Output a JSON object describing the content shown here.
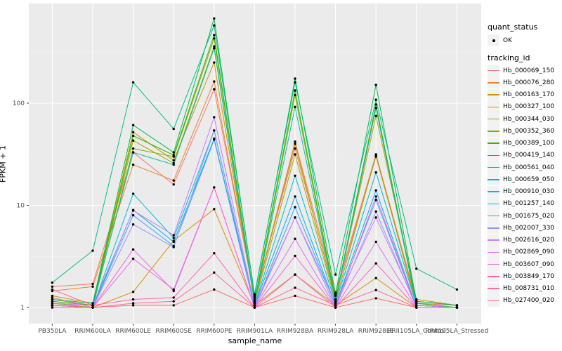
{
  "axes": {
    "y_title": "FPKM + 1",
    "x_title": "sample_name",
    "y_tick_labels": [
      "100",
      "10",
      "1"
    ],
    "y_tick_values": [
      100,
      10,
      1
    ]
  },
  "legend": {
    "quant_status": {
      "title": "quant_status",
      "items": [
        {
          "label": "OK",
          "marker": "point-icon"
        }
      ]
    },
    "tracking_id_title": "tracking_id"
  },
  "chart_data": {
    "type": "line",
    "title": "",
    "xlabel": "sample_name",
    "ylabel": "FPKM + 1",
    "y_scale": "log10",
    "ylim": [
      0.7,
      950
    ],
    "yticks": [
      1,
      10,
      100
    ],
    "grid": "on",
    "legend_position": "right",
    "panel_color": "#EBEBEB",
    "point_color": "#000000",
    "categories": [
      "PB350LA",
      "RRIM600LA",
      "RRIM600LE",
      "RRIM600SE",
      "RRIM600PE",
      "RRIM901LA",
      "RRIM928BA",
      "RRIM928LA",
      "RRIM928LE",
      "RRII105LA_Control",
      "RRII105LA_Stressed"
    ],
    "series": [
      {
        "name": "Hb_000069_150",
        "color": "#F8766D",
        "values": [
          1.6,
          1.7,
          33,
          16,
          137,
          1.25,
          36,
          1.3,
          30,
          1.1,
          1.05
        ]
      },
      {
        "name": "Hb_000076_280",
        "color": "#EA8331",
        "values": [
          1.45,
          1.6,
          25,
          17.5,
          163,
          1.2,
          42,
          1.4,
          31.5,
          1.15,
          1.05
        ]
      },
      {
        "name": "Hb_000163_170",
        "color": "#D89000",
        "values": [
          1.05,
          1.0,
          1.42,
          4.5,
          9.2,
          1.05,
          2.1,
          1.05,
          1.94,
          1.0,
          1.0
        ]
      },
      {
        "name": "Hb_000327_100",
        "color": "#C09B00",
        "values": [
          1.3,
          1.1,
          52,
          27.6,
          250,
          1.15,
          40,
          1.2,
          75,
          1.2,
          1.05
        ]
      },
      {
        "name": "Hb_000344_030",
        "color": "#A3A500",
        "values": [
          1.2,
          1.05,
          43,
          25.9,
          360,
          1.1,
          31.5,
          1.15,
          31,
          1.05,
          1.0
        ]
      },
      {
        "name": "Hb_000352_360",
        "color": "#7CAE00",
        "values": [
          1.1,
          1.0,
          36,
          30,
          430,
          1.1,
          120,
          1.15,
          90,
          1.05,
          1.0
        ]
      },
      {
        "name": "Hb_000389_100",
        "color": "#39B600",
        "values": [
          1.15,
          1.05,
          48,
          31,
          465,
          1.15,
          133,
          1.2,
          97,
          1.1,
          1.0
        ]
      },
      {
        "name": "Hb_000419_140",
        "color": "#00BB4E",
        "values": [
          1.2,
          1.1,
          61,
          33,
          675,
          1.3,
          174,
          1.35,
          151,
          1.15,
          1.05
        ]
      },
      {
        "name": "Hb_000561_040",
        "color": "#00C087",
        "values": [
          1.75,
          3.6,
          160,
          56,
          577,
          1.35,
          160,
          2.1,
          108,
          2.4,
          1.5
        ]
      },
      {
        "name": "Hb_000659_050",
        "color": "#00C0B2",
        "values": [
          1.1,
          1.05,
          33,
          25,
          345,
          1.1,
          92,
          1.15,
          90,
          1.05,
          1.0
        ]
      },
      {
        "name": "Hb_000910_030",
        "color": "#00BCD8",
        "values": [
          1.05,
          1.0,
          13,
          4.8,
          54,
          1.05,
          19.5,
          1.1,
          21,
          1.05,
          1.0
        ]
      },
      {
        "name": "Hb_001257_140",
        "color": "#00B0F6",
        "values": [
          1.05,
          1.0,
          9.0,
          4.4,
          45,
          1.05,
          12.2,
          1.05,
          14,
          1.0,
          1.0
        ]
      },
      {
        "name": "Hb_001675_020",
        "color": "#35A2FF",
        "values": [
          1.0,
          1.0,
          8.0,
          4.0,
          44,
          1.0,
          9.6,
          1.05,
          11.3,
          1.0,
          1.0
        ]
      },
      {
        "name": "Hb_002007_330",
        "color": "#9590FF",
        "values": [
          1.05,
          1.0,
          6.5,
          3.9,
          54,
          1.0,
          7.6,
          1.0,
          8.7,
          1.0,
          1.0
        ]
      },
      {
        "name": "Hb_002616_020",
        "color": "#C77CFF",
        "values": [
          1.1,
          1.05,
          8.9,
          5.1,
          73,
          1.05,
          7.6,
          1.1,
          7.6,
          1.05,
          1.0
        ]
      },
      {
        "name": "Hb_002869_090",
        "color": "#E76BF3",
        "values": [
          1.05,
          1.0,
          3.0,
          1.5,
          15,
          1.0,
          4.7,
          1.0,
          4.4,
          1.0,
          1.0
        ]
      },
      {
        "name": "Hb_003607_090",
        "color": "#FA62DB",
        "values": [
          1.0,
          1.0,
          3.7,
          1.45,
          15,
          1.0,
          3.2,
          1.0,
          12.2,
          1.0,
          1.0
        ]
      },
      {
        "name": "Hb_003849_170",
        "color": "#FF62BC",
        "values": [
          1.5,
          1.05,
          1.2,
          1.25,
          3.4,
          1.0,
          2.1,
          1.0,
          2.7,
          1.0,
          1.0
        ]
      },
      {
        "name": "Hb_008731_010",
        "color": "#FF6A98",
        "values": [
          1.25,
          1.0,
          1.1,
          1.15,
          2.2,
          1.0,
          1.56,
          1.05,
          1.48,
          1.0,
          1.0
        ]
      },
      {
        "name": "Hb_027400_020",
        "color": "#FF6C67",
        "values": [
          1.05,
          1.0,
          1.05,
          1.05,
          1.5,
          1.0,
          1.3,
          1.0,
          1.23,
          1.0,
          1.0
        ]
      }
    ]
  }
}
